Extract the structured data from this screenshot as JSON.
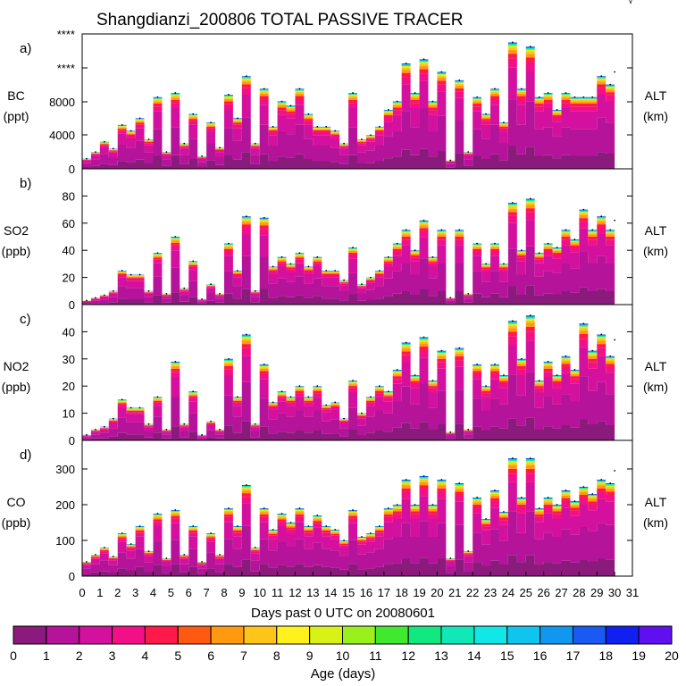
{
  "title": "Shangdianzi_200806 TOTAL PASSIVE TRACER",
  "corner_mark": "√",
  "xlabel": "Days past 0 UTC on 20080601",
  "x_ticks": [
    "0",
    "1",
    "2",
    "3",
    "4",
    "5",
    "6",
    "7",
    "8",
    "9",
    "10",
    "11",
    "12",
    "13",
    "14",
    "15",
    "16",
    "17",
    "18",
    "19",
    "20",
    "21",
    "22",
    "23",
    "24",
    "25",
    "26",
    "27",
    "28",
    "29",
    "30",
    "31"
  ],
  "colorbar": {
    "label": "Age (days)",
    "ticks": [
      "0",
      "1",
      "2",
      "3",
      "4",
      "5",
      "6",
      "7",
      "8",
      "9",
      "10",
      "11",
      "12",
      "13",
      "14",
      "15",
      "16",
      "17",
      "18",
      "19",
      "20"
    ],
    "colors": [
      "#8b1a7d",
      "#b4139a",
      "#d3119e",
      "#f20f87",
      "#ff1a4a",
      "#ff5a10",
      "#ff9a10",
      "#ffc418",
      "#fff21c",
      "#d8f216",
      "#9af01a",
      "#40e830",
      "#10e880",
      "#10e8b8",
      "#10e8e8",
      "#10c4f0",
      "#1098f0",
      "#1a5af4",
      "#1020f0",
      "#6010f0"
    ]
  },
  "chart_data": [
    {
      "type": "area",
      "panel": "a)",
      "ylabel_top": "BC",
      "ylabel_unit": "(ppt)",
      "right_label": "ALT",
      "right_unit": "(km)",
      "y_ticks": [
        "0",
        "4000",
        "8000",
        "****",
        "****"
      ],
      "ylim": [
        0,
        16000
      ],
      "x": [
        0,
        0.5,
        1,
        1.5,
        2,
        2.5,
        3,
        3.5,
        4,
        4.5,
        5,
        5.5,
        6,
        6.5,
        7,
        7.5,
        8,
        8.5,
        9,
        9.5,
        10,
        10.5,
        11,
        11.5,
        12,
        12.5,
        13,
        13.5,
        14,
        14.5,
        15,
        15.5,
        16,
        16.5,
        17,
        17.5,
        18,
        18.5,
        19,
        19.5,
        20,
        20.5,
        21,
        21.5,
        22,
        22.5,
        23,
        23.5,
        24,
        24.5,
        25,
        25.5,
        26,
        26.5,
        27,
        27.5,
        28,
        28.5,
        29,
        29.5,
        30
      ],
      "values": [
        1200,
        2000,
        3200,
        2400,
        5200,
        4500,
        6000,
        3500,
        8500,
        2000,
        9000,
        3000,
        6500,
        1500,
        5500,
        2500,
        8800,
        6000,
        11000,
        3000,
        9500,
        5000,
        8000,
        7500,
        9500,
        6500,
        5000,
        5000,
        4500,
        3000,
        9000,
        3500,
        4000,
        5000,
        7000,
        8000,
        12500,
        9000,
        13000,
        8000,
        11500,
        1000,
        10500,
        2000,
        8500,
        6500,
        9500,
        5500,
        15000,
        9500,
        14500,
        8500,
        9000,
        7000,
        9000,
        8500,
        8500,
        8500,
        11000,
        10000,
        11500
      ]
    },
    {
      "type": "area",
      "panel": "b)",
      "ylabel_top": "SO2",
      "ylabel_unit": "(ppb)",
      "right_label": "ALT",
      "right_unit": "(km)",
      "y_ticks": [
        "0",
        "20",
        "40",
        "60",
        "80"
      ],
      "ylim": [
        0,
        100
      ],
      "x": [
        0,
        0.5,
        1,
        1.5,
        2,
        2.5,
        3,
        3.5,
        4,
        4.5,
        5,
        5.5,
        6,
        6.5,
        7,
        7.5,
        8,
        8.5,
        9,
        9.5,
        10,
        10.5,
        11,
        11.5,
        12,
        12.5,
        13,
        13.5,
        14,
        14.5,
        15,
        15.5,
        16,
        16.5,
        17,
        17.5,
        18,
        18.5,
        19,
        19.5,
        20,
        20.5,
        21,
        21.5,
        22,
        22.5,
        23,
        23.5,
        24,
        24.5,
        25,
        25.5,
        26,
        26.5,
        27,
        27.5,
        28,
        28.5,
        29,
        29.5,
        30
      ],
      "values": [
        3,
        5,
        7,
        10,
        25,
        22,
        22,
        10,
        38,
        8,
        50,
        12,
        32,
        4,
        15,
        8,
        45,
        25,
        65,
        10,
        64,
        28,
        35,
        30,
        38,
        28,
        35,
        25,
        25,
        18,
        42,
        15,
        20,
        25,
        35,
        45,
        55,
        40,
        62,
        35,
        55,
        5,
        55,
        8,
        45,
        30,
        45,
        30,
        75,
        40,
        78,
        38,
        45,
        42,
        55,
        48,
        70,
        55,
        65,
        55,
        62
      ]
    },
    {
      "type": "area",
      "panel": "c)",
      "ylabel_top": "NO2",
      "ylabel_unit": "(ppb)",
      "right_label": "ALT",
      "right_unit": "(km)",
      "y_ticks": [
        "0",
        "10",
        "20",
        "30",
        "40"
      ],
      "ylim": [
        0,
        50
      ],
      "x": [
        0,
        0.5,
        1,
        1.5,
        2,
        2.5,
        3,
        3.5,
        4,
        4.5,
        5,
        5.5,
        6,
        6.5,
        7,
        7.5,
        8,
        8.5,
        9,
        9.5,
        10,
        10.5,
        11,
        11.5,
        12,
        12.5,
        13,
        13.5,
        14,
        14.5,
        15,
        15.5,
        16,
        16.5,
        17,
        17.5,
        18,
        18.5,
        19,
        19.5,
        20,
        20.5,
        21,
        21.5,
        22,
        22.5,
        23,
        23.5,
        24,
        24.5,
        25,
        25.5,
        26,
        26.5,
        27,
        27.5,
        28,
        28.5,
        29,
        29.5,
        30
      ],
      "values": [
        2,
        4,
        5,
        8,
        15,
        12,
        12,
        6,
        16,
        4,
        29,
        6,
        18,
        2,
        7,
        4,
        30,
        16,
        39,
        6,
        28,
        14,
        18,
        16,
        20,
        16,
        20,
        13,
        14,
        8,
        22,
        10,
        16,
        20,
        18,
        26,
        36,
        24,
        38,
        22,
        33,
        3,
        34,
        4,
        28,
        20,
        28,
        24,
        44,
        30,
        46,
        22,
        29,
        24,
        31,
        26,
        43,
        33,
        39,
        31,
        37
      ]
    },
    {
      "type": "area",
      "panel": "d)",
      "ylabel_top": "CO",
      "ylabel_unit": "(ppb)",
      "right_label": "ALT",
      "right_unit": "(km)",
      "y_ticks": [
        "0",
        "100",
        "200",
        "300"
      ],
      "ylim": [
        0,
        380
      ],
      "x": [
        0,
        0.5,
        1,
        1.5,
        2,
        2.5,
        3,
        3.5,
        4,
        4.5,
        5,
        5.5,
        6,
        6.5,
        7,
        7.5,
        8,
        8.5,
        9,
        9.5,
        10,
        10.5,
        11,
        11.5,
        12,
        12.5,
        13,
        13.5,
        14,
        14.5,
        15,
        15.5,
        16,
        16.5,
        17,
        17.5,
        18,
        18.5,
        19,
        19.5,
        20,
        20.5,
        21,
        21.5,
        22,
        22.5,
        23,
        23.5,
        24,
        24.5,
        25,
        25.5,
        26,
        26.5,
        27,
        27.5,
        28,
        28.5,
        29,
        29.5,
        30
      ],
      "values": [
        40,
        60,
        80,
        55,
        120,
        90,
        140,
        70,
        175,
        50,
        185,
        60,
        140,
        40,
        120,
        60,
        190,
        140,
        255,
        80,
        190,
        130,
        175,
        150,
        190,
        140,
        170,
        140,
        130,
        100,
        185,
        110,
        120,
        140,
        190,
        200,
        270,
        200,
        280,
        200,
        270,
        50,
        260,
        70,
        220,
        160,
        240,
        180,
        330,
        220,
        330,
        190,
        220,
        200,
        240,
        210,
        250,
        230,
        270,
        260,
        295
      ]
    }
  ]
}
